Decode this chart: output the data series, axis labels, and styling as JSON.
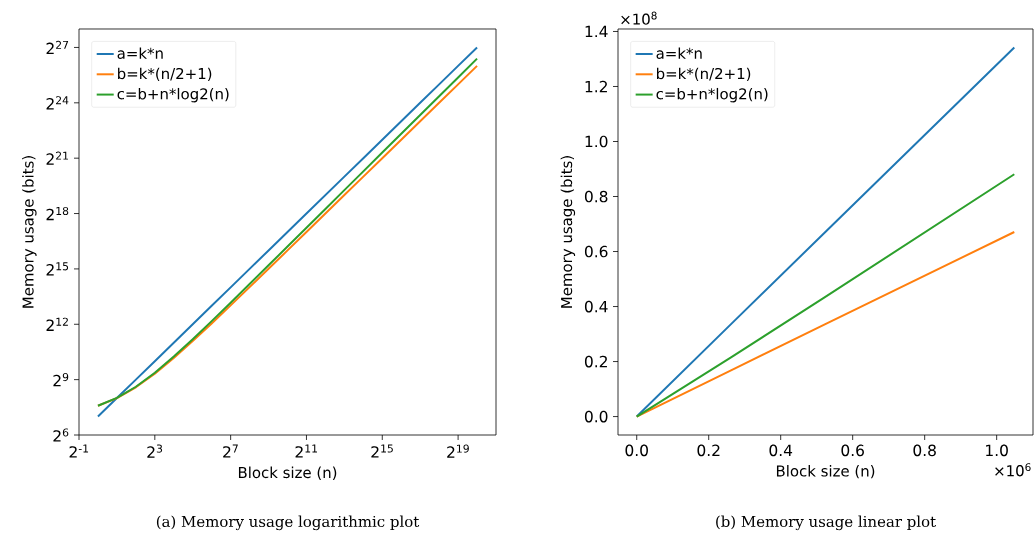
{
  "chart_data": [
    {
      "type": "line",
      "log": "xy",
      "legend": "top left",
      "xlabel": "Block size (n)",
      "ylabel": "Memory usage (bits)",
      "x": [
        1,
        2,
        4,
        8,
        16,
        32,
        64,
        128,
        256,
        512,
        1024,
        2048,
        4096,
        8192,
        16384,
        32768,
        65536,
        131072,
        262144,
        524288,
        1048576
      ],
      "xlim": [
        0.5,
        2097152
      ],
      "ylim": [
        64,
        268435456
      ],
      "xticks": [
        {
          "value": 0.5,
          "label": "2$^{-1}$"
        },
        {
          "value": 8,
          "label": "2$^{3}$"
        },
        {
          "value": 128,
          "label": "2$^{7}$"
        },
        {
          "value": 2048,
          "label": "2$^{11}$"
        },
        {
          "value": 32768,
          "label": "2$^{15}$"
        },
        {
          "value": 524288,
          "label": "2$^{19}$"
        }
      ],
      "yticks": [
        {
          "value": 64,
          "label": "2$^{6}$"
        },
        {
          "value": 512,
          "label": "2$^{9}$"
        },
        {
          "value": 4096,
          "label": "2$^{12}$"
        },
        {
          "value": 32768,
          "label": "2$^{15}$"
        },
        {
          "value": 262144,
          "label": "2$^{18}$"
        },
        {
          "value": 2097152,
          "label": "2$^{21}$"
        },
        {
          "value": 16777216,
          "label": "2$^{24}$"
        },
        {
          "value": 134217728,
          "label": "2$^{27}$"
        }
      ],
      "series": [
        {
          "name": "a=k*n",
          "color": "#1f77b4",
          "values": [
            128,
            256,
            512,
            1024,
            2048,
            4096,
            8192,
            16384,
            32768,
            65536,
            131072,
            262144,
            524288,
            1048576,
            2097152,
            4194304,
            8388608,
            16777216,
            33554432,
            67108864,
            134217728
          ]
        },
        {
          "name": "b=k*(n/2+1)",
          "color": "#ff7f0e",
          "values": [
            192,
            256,
            384,
            640,
            1152,
            2176,
            4224,
            8320,
            16512,
            32896,
            65664,
            131200,
            262272,
            524416,
            1048704,
            2097280,
            4194432,
            8388736,
            16777344,
            33554560,
            67108992
          ]
        },
        {
          "name": "c=b+n*log2(n)",
          "color": "#2ca02c",
          "values": [
            192,
            258,
            392,
            664,
            1216,
            2336,
            4608,
            9216,
            18560,
            37504,
            75904,
            153728,
            311424,
            630912,
            1278080,
            2588800,
            5243008,
            10616960,
            21495936,
            43516032,
            88080512
          ]
        }
      ],
      "annotations": [
        "(a) Memory usage logarithmic plot"
      ]
    },
    {
      "type": "line",
      "legend": "top left",
      "xlabel": "Block size (n)",
      "ylabel": "Memory usage (bits)",
      "x": [
        0.0,
        0.262,
        0.524,
        1.049
      ],
      "xlim": [
        -0.052,
        1.101
      ],
      "ylim": [
        -0.067,
        1.409
      ],
      "xticks": [
        {
          "value": 0,
          "label": "0.0"
        },
        0.2,
        0.4,
        0.6,
        0.8,
        {
          "value": 1,
          "label": "1.0"
        }
      ],
      "yticks": [
        {
          "value": 0,
          "label": "0.0"
        },
        0.2,
        0.4,
        0.6,
        0.8,
        {
          "value": 1,
          "label": "1.0"
        },
        1.2,
        1.4
      ],
      "series": [
        {
          "name": "a=k*n",
          "color": "#1f77b4",
          "values": [
            0.0,
            0.336,
            0.671,
            1.342
          ]
        },
        {
          "name": "b=k*(n/2+1)",
          "color": "#ff7f0e",
          "values": [
            0.0,
            0.168,
            0.336,
            0.671
          ]
        },
        {
          "name": "c=b+n*log2(n)",
          "color": "#2ca02c",
          "values": [
            0.0,
            0.215,
            0.435,
            0.881
          ]
        }
      ],
      "annotations": [
        "×10$^{8}$",
        "×10$^{6}$",
        "(b) Memory usage linear plot"
      ]
    }
  ]
}
